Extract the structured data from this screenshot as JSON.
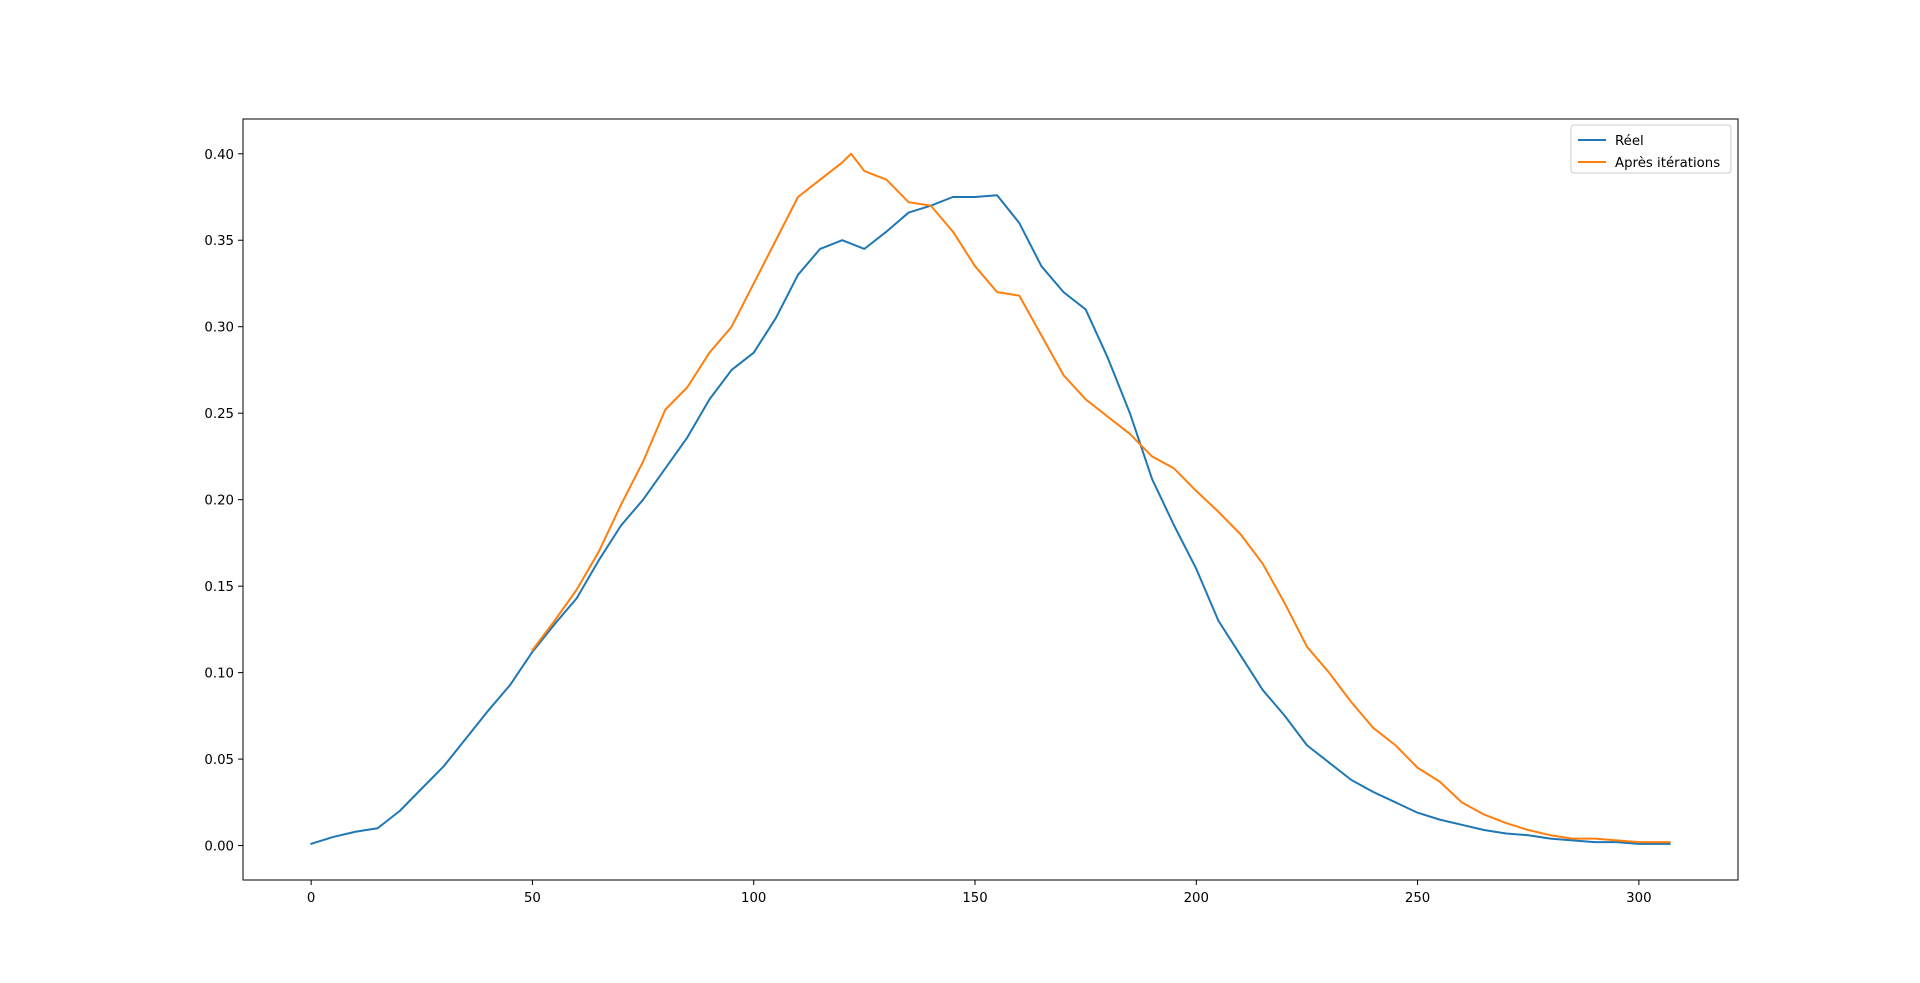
{
  "chart_data": {
    "type": "line",
    "title": "",
    "xlabel": "",
    "ylabel": "",
    "xlim": [
      -15.4,
      322.4
    ],
    "ylim": [
      -0.0199,
      0.4201
    ],
    "xticks": [
      0,
      50,
      100,
      150,
      200,
      250,
      300
    ],
    "xtick_labels": [
      "0",
      "50",
      "100",
      "150",
      "200",
      "250",
      "300"
    ],
    "yticks": [
      0.0,
      0.05,
      0.1,
      0.15,
      0.2,
      0.25,
      0.3,
      0.35,
      0.4
    ],
    "ytick_labels": [
      "0.00",
      "0.05",
      "0.10",
      "0.15",
      "0.20",
      "0.25",
      "0.30",
      "0.35",
      "0.40"
    ],
    "grid": false,
    "legend_position": "top-right",
    "series": [
      {
        "name": "Réel",
        "color": "#1f77b4",
        "x": [
          0,
          5,
          10,
          15,
          20,
          25,
          30,
          35,
          40,
          45,
          50,
          55,
          60,
          65,
          70,
          75,
          80,
          85,
          90,
          95,
          100,
          105,
          110,
          115,
          120,
          125,
          130,
          135,
          140,
          145,
          150,
          155,
          160,
          165,
          170,
          175,
          180,
          185,
          190,
          195,
          200,
          205,
          210,
          215,
          220,
          225,
          230,
          235,
          240,
          245,
          250,
          255,
          260,
          265,
          270,
          275,
          280,
          285,
          290,
          295,
          300,
          305,
          307
        ],
        "y": [
          0.001,
          0.005,
          0.008,
          0.01,
          0.02,
          0.033,
          0.046,
          0.062,
          0.078,
          0.093,
          0.112,
          0.128,
          0.143,
          0.165,
          0.185,
          0.2,
          0.218,
          0.236,
          0.258,
          0.275,
          0.285,
          0.305,
          0.33,
          0.345,
          0.35,
          0.345,
          0.355,
          0.366,
          0.37,
          0.375,
          0.375,
          0.376,
          0.36,
          0.335,
          0.32,
          0.31,
          0.282,
          0.25,
          0.212,
          0.185,
          0.16,
          0.13,
          0.11,
          0.09,
          0.075,
          0.058,
          0.048,
          0.038,
          0.031,
          0.025,
          0.019,
          0.015,
          0.012,
          0.009,
          0.007,
          0.006,
          0.004,
          0.003,
          0.002,
          0.002,
          0.001,
          0.001,
          0.001
        ]
      },
      {
        "name": "Après itérations",
        "color": "#ff7f0e",
        "x": [
          50,
          55,
          60,
          65,
          70,
          75,
          80,
          85,
          90,
          95,
          100,
          105,
          110,
          115,
          120,
          122,
          125,
          130,
          135,
          140,
          145,
          150,
          155,
          160,
          165,
          170,
          175,
          180,
          185,
          190,
          195,
          200,
          205,
          210,
          215,
          220,
          225,
          230,
          235,
          240,
          245,
          250,
          255,
          260,
          265,
          270,
          275,
          280,
          285,
          290,
          295,
          300,
          305,
          307
        ],
        "y": [
          0.113,
          0.13,
          0.148,
          0.17,
          0.197,
          0.222,
          0.252,
          0.265,
          0.285,
          0.3,
          0.325,
          0.35,
          0.375,
          0.385,
          0.395,
          0.4,
          0.39,
          0.385,
          0.372,
          0.37,
          0.355,
          0.335,
          0.32,
          0.318,
          0.295,
          0.272,
          0.258,
          0.248,
          0.238,
          0.225,
          0.218,
          0.205,
          0.193,
          0.18,
          0.163,
          0.14,
          0.115,
          0.1,
          0.083,
          0.068,
          0.058,
          0.045,
          0.037,
          0.025,
          0.018,
          0.013,
          0.009,
          0.006,
          0.004,
          0.004,
          0.003,
          0.002,
          0.002,
          0.002
        ]
      }
    ]
  }
}
